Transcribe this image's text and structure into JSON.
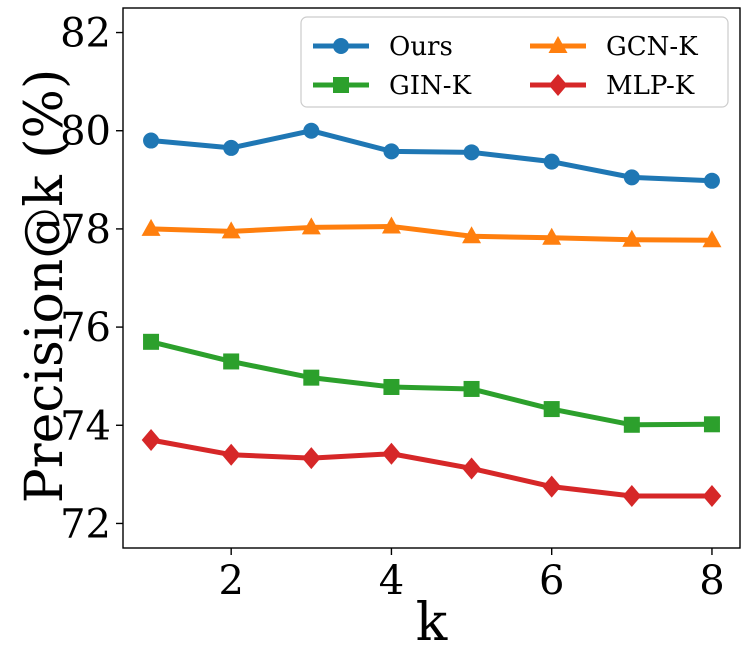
{
  "chart_data": {
    "type": "line",
    "title": "",
    "xlabel": "k",
    "ylabel": "Precision@k (%)",
    "x": [
      1,
      2,
      3,
      4,
      5,
      6,
      7,
      8
    ],
    "xlim": [
      0.65,
      8.35
    ],
    "ylim": [
      71.5,
      82.5
    ],
    "xticks": [
      2,
      4,
      6,
      8
    ],
    "yticks": [
      72,
      74,
      76,
      78,
      80,
      82
    ],
    "grid": false,
    "legend_position": "top-right",
    "legend_columns": 2,
    "series": [
      {
        "name": "Ours",
        "color": "#1f77b4",
        "marker": "circle",
        "values": [
          79.8,
          79.65,
          80.0,
          79.58,
          79.56,
          79.37,
          79.05,
          78.98
        ]
      },
      {
        "name": "GCN-K",
        "color": "#ff7f0e",
        "marker": "triangle",
        "values": [
          78.0,
          77.95,
          78.03,
          78.05,
          77.85,
          77.82,
          77.78,
          77.77
        ]
      },
      {
        "name": "GIN-K",
        "color": "#2ca02c",
        "marker": "square",
        "values": [
          75.7,
          75.3,
          74.97,
          74.78,
          74.74,
          74.33,
          74.01,
          74.02
        ]
      },
      {
        "name": "MLP-K",
        "color": "#d62728",
        "marker": "diamond",
        "values": [
          73.7,
          73.4,
          73.33,
          73.42,
          73.12,
          72.75,
          72.56,
          72.56
        ]
      }
    ]
  }
}
